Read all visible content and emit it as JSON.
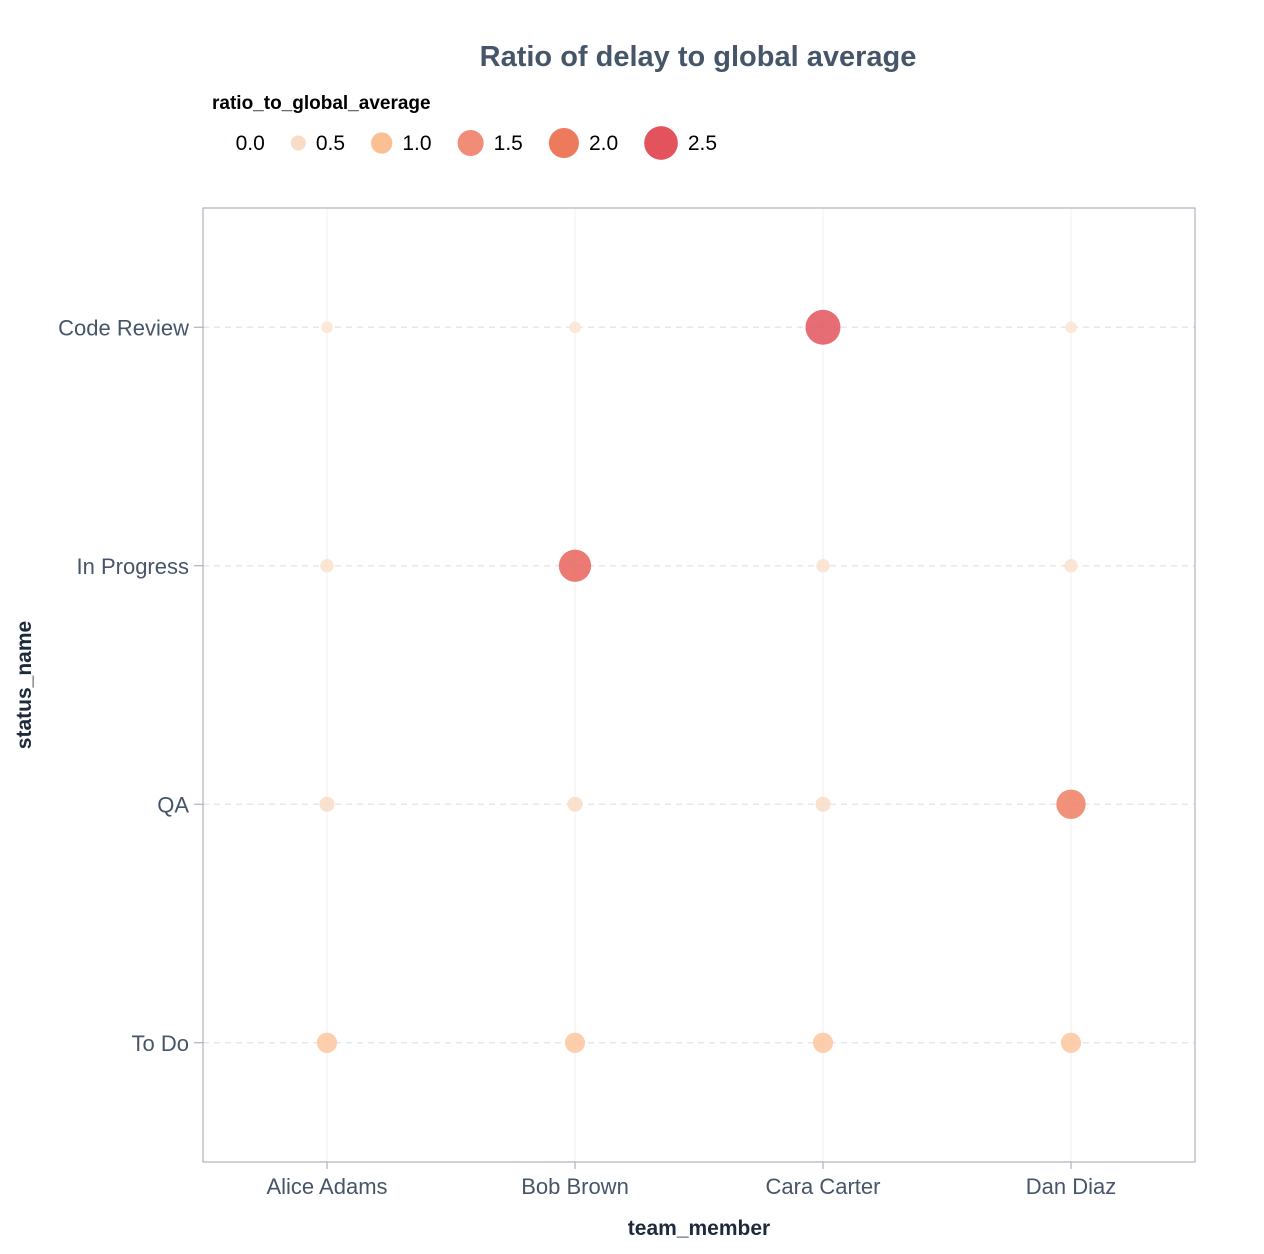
{
  "chart_data": {
    "type": "scatter",
    "title": "Ratio of delay to global average",
    "xlabel": "team_member",
    "ylabel": "status_name",
    "x_categories": [
      "Alice Adams",
      "Bob Brown",
      "Cara Carter",
      "Dan Diaz"
    ],
    "y_categories": [
      "To Do",
      "QA",
      "In Progress",
      "Code Review"
    ],
    "size_field": "ratio_to_global_average",
    "legend": {
      "title": "ratio_to_global_average",
      "placement": "top-left",
      "entries": [
        {
          "label": "0.0",
          "value": 0.0,
          "color": "#fdf2ea"
        },
        {
          "label": "0.5",
          "value": 0.5,
          "color": "#f9dcc6"
        },
        {
          "label": "1.0",
          "value": 1.0,
          "color": "#fbbf94"
        },
        {
          "label": "1.5",
          "value": 1.5,
          "color": "#f08c78"
        },
        {
          "label": "2.0",
          "value": 2.0,
          "color": "#ee7a5e"
        },
        {
          "label": "2.5",
          "value": 2.5,
          "color": "#e3535d"
        }
      ]
    },
    "points": [
      {
        "x": "Alice Adams",
        "y": "Code Review",
        "value": 0.3
      },
      {
        "x": "Bob Brown",
        "y": "Code Review",
        "value": 0.3
      },
      {
        "x": "Cara Carter",
        "y": "Code Review",
        "value": 2.7
      },
      {
        "x": "Dan Diaz",
        "y": "Code Review",
        "value": 0.3
      },
      {
        "x": "Alice Adams",
        "y": "In Progress",
        "value": 0.4
      },
      {
        "x": "Bob Brown",
        "y": "In Progress",
        "value": 2.3
      },
      {
        "x": "Cara Carter",
        "y": "In Progress",
        "value": 0.4
      },
      {
        "x": "Dan Diaz",
        "y": "In Progress",
        "value": 0.4
      },
      {
        "x": "Alice Adams",
        "y": "QA",
        "value": 0.5
      },
      {
        "x": "Bob Brown",
        "y": "QA",
        "value": 0.5
      },
      {
        "x": "Cara Carter",
        "y": "QA",
        "value": 0.5
      },
      {
        "x": "Dan Diaz",
        "y": "QA",
        "value": 1.9
      },
      {
        "x": "Alice Adams",
        "y": "To Do",
        "value": 0.9
      },
      {
        "x": "Bob Brown",
        "y": "To Do",
        "value": 0.9
      },
      {
        "x": "Cara Carter",
        "y": "To Do",
        "value": 0.9
      },
      {
        "x": "Dan Diaz",
        "y": "To Do",
        "value": 0.9
      }
    ],
    "grid": true
  }
}
